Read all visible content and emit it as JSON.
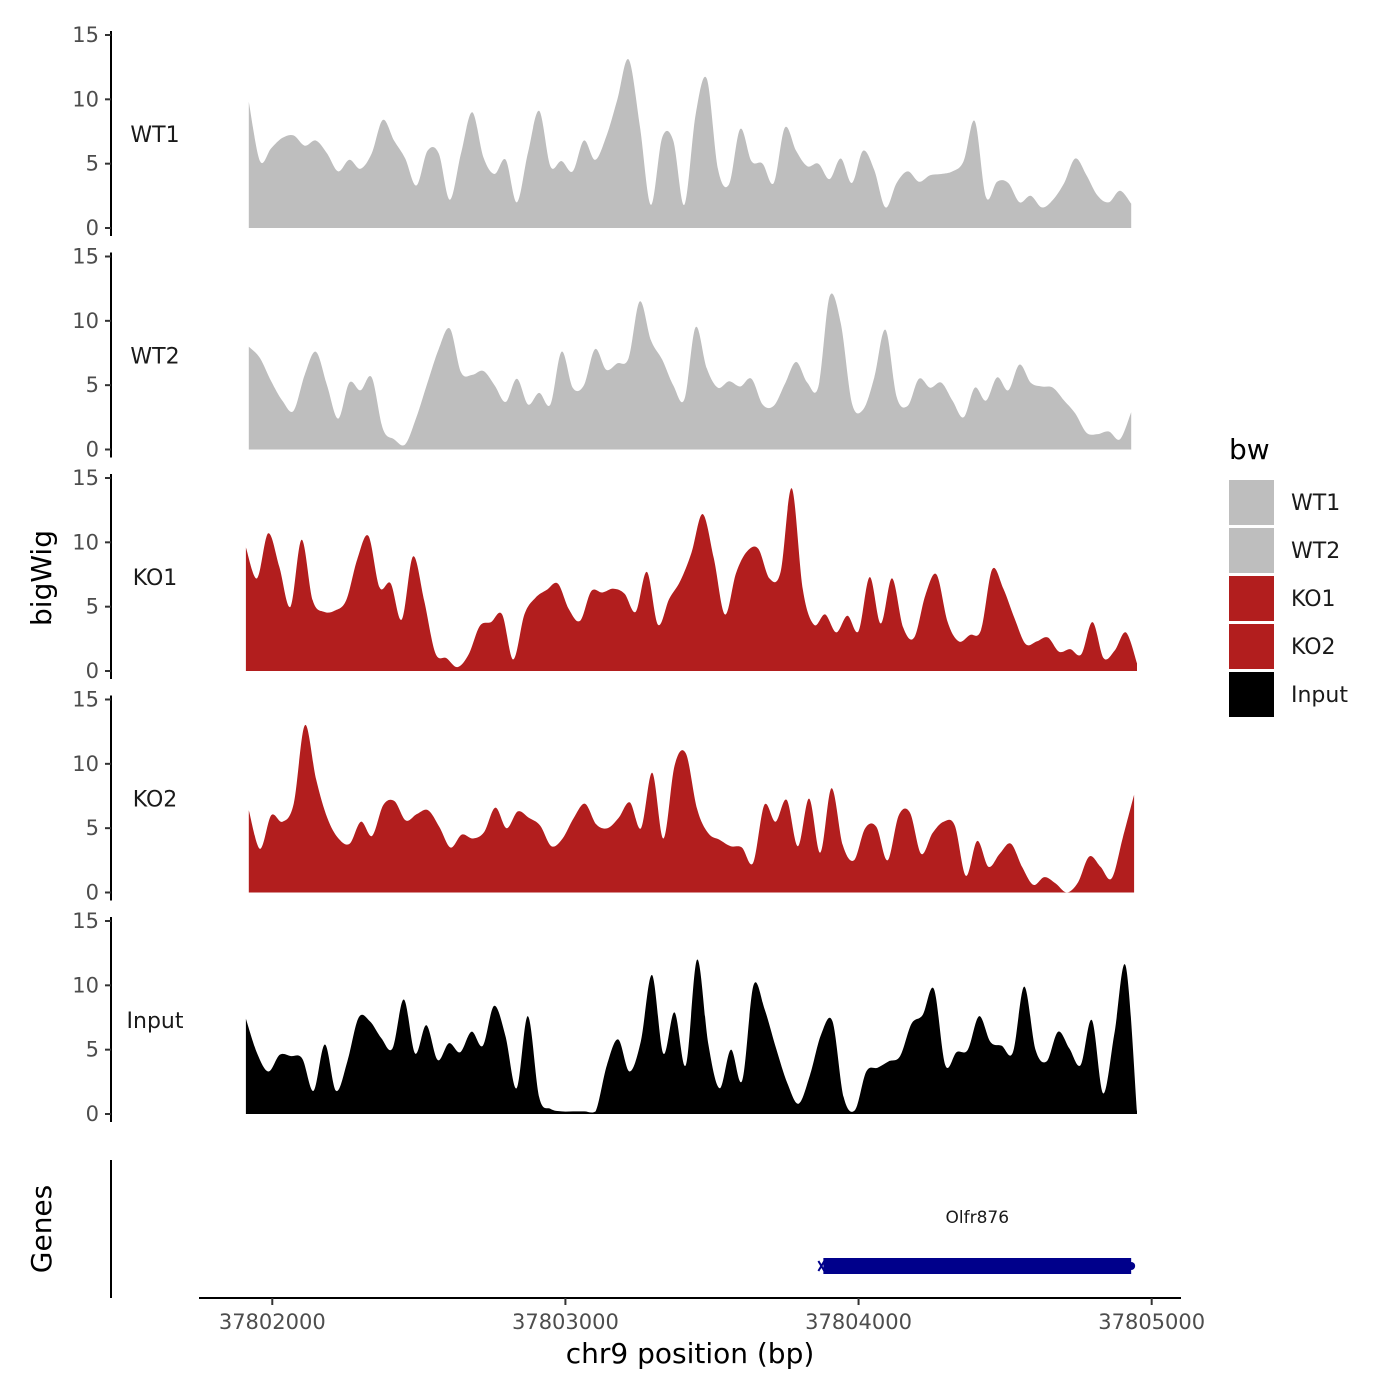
{
  "chart_data": {
    "type": "area",
    "title": "",
    "xlabel": "chr9 position (bp)",
    "ylabel": "bigWig",
    "gene_panel_label": "Genes",
    "x_range": [
      37801750,
      37805100
    ],
    "x_ticks": [
      37802000,
      37803000,
      37804000,
      37805000
    ],
    "ylim": [
      0,
      15
    ],
    "y_ticks": [
      0,
      5,
      10,
      15
    ],
    "legend": {
      "title": "bw",
      "position": "right",
      "entries": [
        {
          "label": "WT1",
          "color": "#BEBEBE"
        },
        {
          "label": "WT2",
          "color": "#BEBEBE"
        },
        {
          "label": "KO1",
          "color": "#B21E1E"
        },
        {
          "label": "KO2",
          "color": "#B21E1E"
        },
        {
          "label": "Input",
          "color": "#000000"
        }
      ]
    },
    "series": [
      {
        "name": "WT1",
        "color": "#BEBEBE",
        "x_start": 37801920,
        "x_end": 37804930,
        "values": [
          9.8,
          5.2,
          6.2,
          7.0,
          7.2,
          6.4,
          6.8,
          5.8,
          4.4,
          5.3,
          4.6,
          5.8,
          8.4,
          6.8,
          5.4,
          3.3,
          6.0,
          5.8,
          2.2,
          5.8,
          9.0,
          5.5,
          4.2,
          5.3,
          2.0,
          5.9,
          9.1,
          4.8,
          5.2,
          4.4,
          6.8,
          5.3,
          7.1,
          10.0,
          13.1,
          8.0,
          1.8,
          7.0,
          6.8,
          1.8,
          8.8,
          11.6,
          4.6,
          3.4,
          7.7,
          5.2,
          5.0,
          3.5,
          7.8,
          6.0,
          4.8,
          5.0,
          3.8,
          5.4,
          3.5,
          6.0,
          4.5,
          1.6,
          3.5,
          4.4,
          3.6,
          4.1,
          4.2,
          4.4,
          5.2,
          8.3,
          2.4,
          3.6,
          3.5,
          2.0,
          2.5,
          1.6,
          2.2,
          3.5,
          5.4,
          4.1,
          2.5,
          2.0,
          2.9,
          1.9
        ]
      },
      {
        "name": "WT2",
        "color": "#BEBEBE",
        "x_start": 37801920,
        "x_end": 37804930,
        "values": [
          8.0,
          7.1,
          5.3,
          3.8,
          3.0,
          5.8,
          7.6,
          5.0,
          2.4,
          5.2,
          4.6,
          5.6,
          1.6,
          0.8,
          0.4,
          2.5,
          5.2,
          7.8,
          9.4,
          6.0,
          5.8,
          6.1,
          5.0,
          3.7,
          5.5,
          3.5,
          4.4,
          3.5,
          7.6,
          4.8,
          5.0,
          7.8,
          6.2,
          6.7,
          7.1,
          11.5,
          8.5,
          7.0,
          5.0,
          3.9,
          9.5,
          6.3,
          4.8,
          5.3,
          4.9,
          5.5,
          3.5,
          3.4,
          5.1,
          6.8,
          5.2,
          4.9,
          11.9,
          9.8,
          3.6,
          3.1,
          5.6,
          9.3,
          4.1,
          3.4,
          5.5,
          4.8,
          5.2,
          3.8,
          2.5,
          4.8,
          3.8,
          5.6,
          4.6,
          6.6,
          5.2,
          4.9,
          4.8,
          3.8,
          2.8,
          1.3,
          1.2,
          1.4,
          0.8,
          2.9
        ]
      },
      {
        "name": "KO1",
        "color": "#B21E1E",
        "x_start": 37801910,
        "x_end": 37804950,
        "values": [
          9.6,
          7.2,
          10.7,
          8.1,
          5.0,
          10.2,
          5.5,
          4.6,
          4.7,
          5.5,
          8.7,
          10.5,
          6.5,
          6.8,
          4.0,
          8.9,
          5.5,
          1.4,
          1.0,
          0.3,
          1.3,
          3.5,
          3.8,
          4.4,
          0.9,
          4.4,
          5.7,
          6.3,
          6.8,
          4.8,
          3.9,
          6.2,
          6.1,
          6.4,
          6.0,
          4.6,
          7.7,
          3.6,
          5.6,
          7.0,
          9.2,
          12.2,
          8.8,
          4.4,
          7.6,
          9.3,
          9.5,
          7.2,
          7.7,
          14.2,
          6.3,
          3.6,
          4.4,
          3.0,
          4.3,
          3.1,
          7.3,
          3.7,
          7.2,
          3.4,
          2.6,
          5.9,
          7.5,
          3.8,
          2.3,
          2.8,
          3.2,
          7.9,
          6.4,
          4.1,
          2.1,
          2.3,
          2.6,
          1.5,
          1.7,
          1.3,
          3.8,
          1.0,
          1.6,
          3.0,
          0.6
        ]
      },
      {
        "name": "KO2",
        "color": "#B21E1E",
        "x_start": 37801920,
        "x_end": 37804940,
        "values": [
          6.4,
          3.4,
          6.0,
          5.5,
          6.9,
          13.0,
          8.8,
          5.8,
          4.2,
          3.8,
          5.5,
          4.4,
          6.8,
          7.1,
          5.6,
          6.1,
          6.4,
          5.1,
          3.5,
          4.5,
          4.2,
          4.7,
          6.6,
          5.0,
          6.3,
          5.8,
          5.2,
          3.6,
          4.2,
          5.8,
          6.9,
          5.3,
          5.0,
          5.8,
          7.0,
          5.0,
          9.3,
          4.2,
          9.9,
          10.8,
          6.5,
          4.6,
          4.1,
          3.6,
          3.5,
          2.3,
          6.8,
          5.5,
          7.2,
          3.6,
          7.3,
          3.1,
          8.1,
          3.7,
          2.5,
          5.0,
          5.1,
          2.5,
          6.0,
          6.2,
          3.0,
          4.6,
          5.5,
          5.2,
          1.3,
          4.0,
          2.0,
          3.0,
          3.8,
          2.0,
          0.6,
          1.2,
          0.7,
          0.0,
          0.8,
          2.8,
          2.0,
          1.1,
          4.3,
          7.6
        ]
      },
      {
        "name": "Input",
        "color": "#000000",
        "x_start": 37801910,
        "x_end": 37804950,
        "values": [
          7.4,
          4.7,
          3.3,
          4.6,
          4.5,
          4.3,
          1.8,
          5.4,
          1.8,
          4.1,
          7.5,
          7.2,
          5.9,
          5.1,
          8.9,
          4.7,
          6.9,
          4.2,
          5.5,
          4.8,
          6.4,
          5.3,
          8.4,
          6.1,
          2.0,
          7.6,
          1.3,
          0.4,
          0.2,
          0.2,
          0.2,
          0.2,
          3.8,
          5.8,
          3.3,
          5.6,
          10.8,
          4.7,
          7.9,
          3.8,
          12.0,
          5.4,
          2.0,
          5.0,
          2.6,
          10.0,
          8.1,
          5.1,
          2.4,
          0.8,
          3.0,
          6.2,
          7.2,
          1.3,
          0.3,
          3.3,
          3.6,
          4.1,
          4.5,
          7.0,
          7.7,
          9.7,
          3.8,
          4.8,
          5.0,
          7.6,
          5.6,
          5.3,
          4.8,
          9.9,
          5.0,
          4.1,
          6.4,
          5.1,
          3.8,
          7.3,
          1.6,
          6.3,
          11.5,
          0.2
        ]
      }
    ],
    "genes": [
      {
        "name": "Olfr876",
        "start": 37803880,
        "end": 37804930,
        "strand": "-",
        "color": "#00008B"
      }
    ]
  }
}
